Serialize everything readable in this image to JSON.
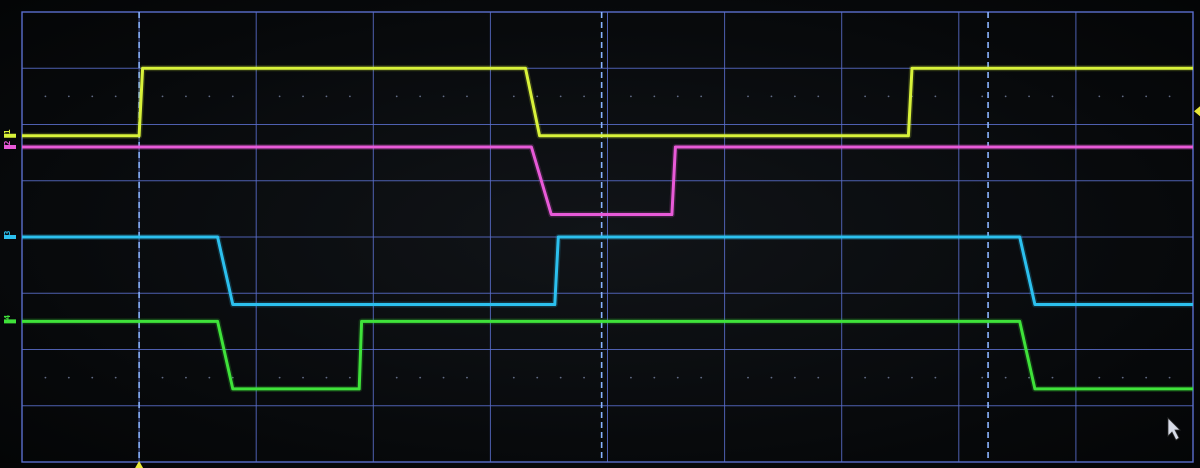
{
  "chart_data": {
    "type": "line",
    "title": "",
    "xlabel": "",
    "ylabel": "",
    "xlim": [
      0,
      10
    ],
    "ylim": [
      0,
      8
    ],
    "grid": true,
    "series": [
      {
        "name": "1",
        "color": "#d8f23a",
        "x": [
          0,
          1.0,
          1.03,
          4.3,
          4.42,
          7.57,
          7.6,
          10
        ],
        "y": [
          5.8,
          5.8,
          7.0,
          7.0,
          5.8,
          5.8,
          7.0,
          7.0
        ]
      },
      {
        "name": "2",
        "color": "#e85ad8",
        "x": [
          0,
          4.35,
          4.52,
          5.55,
          5.58,
          10
        ],
        "y": [
          5.6,
          5.6,
          4.4,
          4.4,
          5.6,
          5.6
        ]
      },
      {
        "name": "3",
        "color": "#2cc0ee",
        "x": [
          0,
          1.67,
          1.8,
          4.55,
          4.58,
          8.52,
          8.65,
          10
        ],
        "y": [
          4.0,
          4.0,
          2.8,
          2.8,
          4.0,
          4.0,
          2.8,
          2.8
        ]
      },
      {
        "name": "4",
        "color": "#3fe23a",
        "x": [
          0,
          1.67,
          1.8,
          2.88,
          2.9,
          8.52,
          8.65,
          10
        ],
        "y": [
          2.5,
          2.5,
          1.3,
          1.3,
          2.5,
          2.5,
          1.3,
          1.3
        ]
      }
    ],
    "markers": [
      1.0,
      4.95,
      8.25
    ]
  },
  "colors": {
    "grid": "#5a6ecc",
    "cursor": "#8ab4ff",
    "trigger": "#e8e838"
  }
}
